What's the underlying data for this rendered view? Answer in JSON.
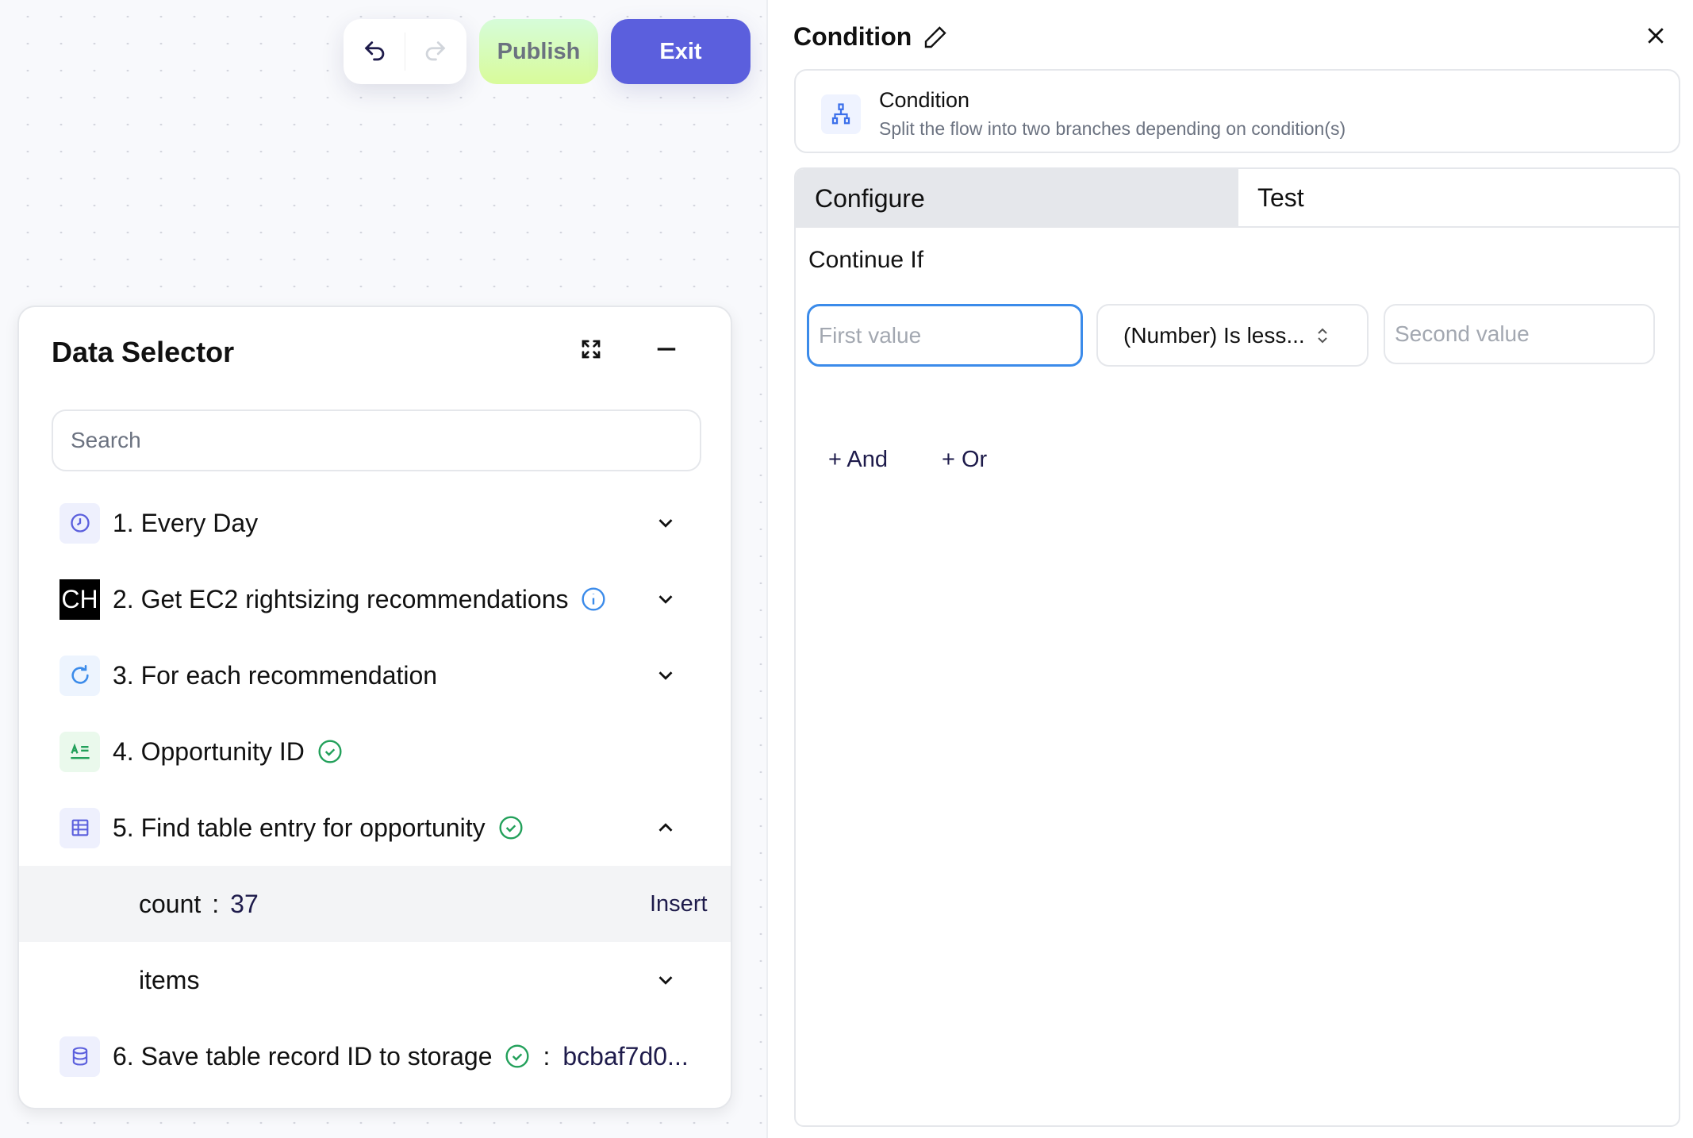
{
  "toolbar": {
    "publish_label": "Publish",
    "exit_label": "Exit"
  },
  "data_selector": {
    "title": "Data Selector",
    "search_placeholder": "Search",
    "steps": [
      {
        "label": "1. Every Day",
        "icon": "clock-icon"
      },
      {
        "label": "2. Get EC2 rightsizing recommendations",
        "icon": "ch-logo",
        "badge_text": "CH",
        "status": "info"
      },
      {
        "label": "3. For each recommendation",
        "icon": "loop-icon"
      },
      {
        "label": "4. Opportunity ID",
        "icon": "text-icon",
        "status": "success"
      },
      {
        "label": "5. Find table entry for opportunity",
        "icon": "table-icon",
        "status": "success",
        "expanded": true,
        "children": [
          {
            "key": "count",
            "sep": ":",
            "value": "37",
            "action": "Insert"
          },
          {
            "key": "items"
          }
        ]
      },
      {
        "label": "6. Save table record ID to storage",
        "icon": "database-icon",
        "status": "success",
        "sep": ":",
        "value": "bcbaf7d0..."
      }
    ]
  },
  "panel": {
    "title": "Condition",
    "card": {
      "title": "Condition",
      "description": "Split the flow into two branches depending on condition(s)"
    },
    "tabs": [
      {
        "label": "Configure",
        "active": true
      },
      {
        "label": "Test"
      }
    ],
    "section_label": "Continue If",
    "first_placeholder": "First value",
    "operator": "(Number) Is less...",
    "second_placeholder": "Second value",
    "add_and": "+ And",
    "add_or": "+ Or"
  },
  "colors": {
    "accent": "#5b5fdd",
    "success": "#22a05a",
    "info": "#3b8bea",
    "focus": "#3b8bea"
  }
}
